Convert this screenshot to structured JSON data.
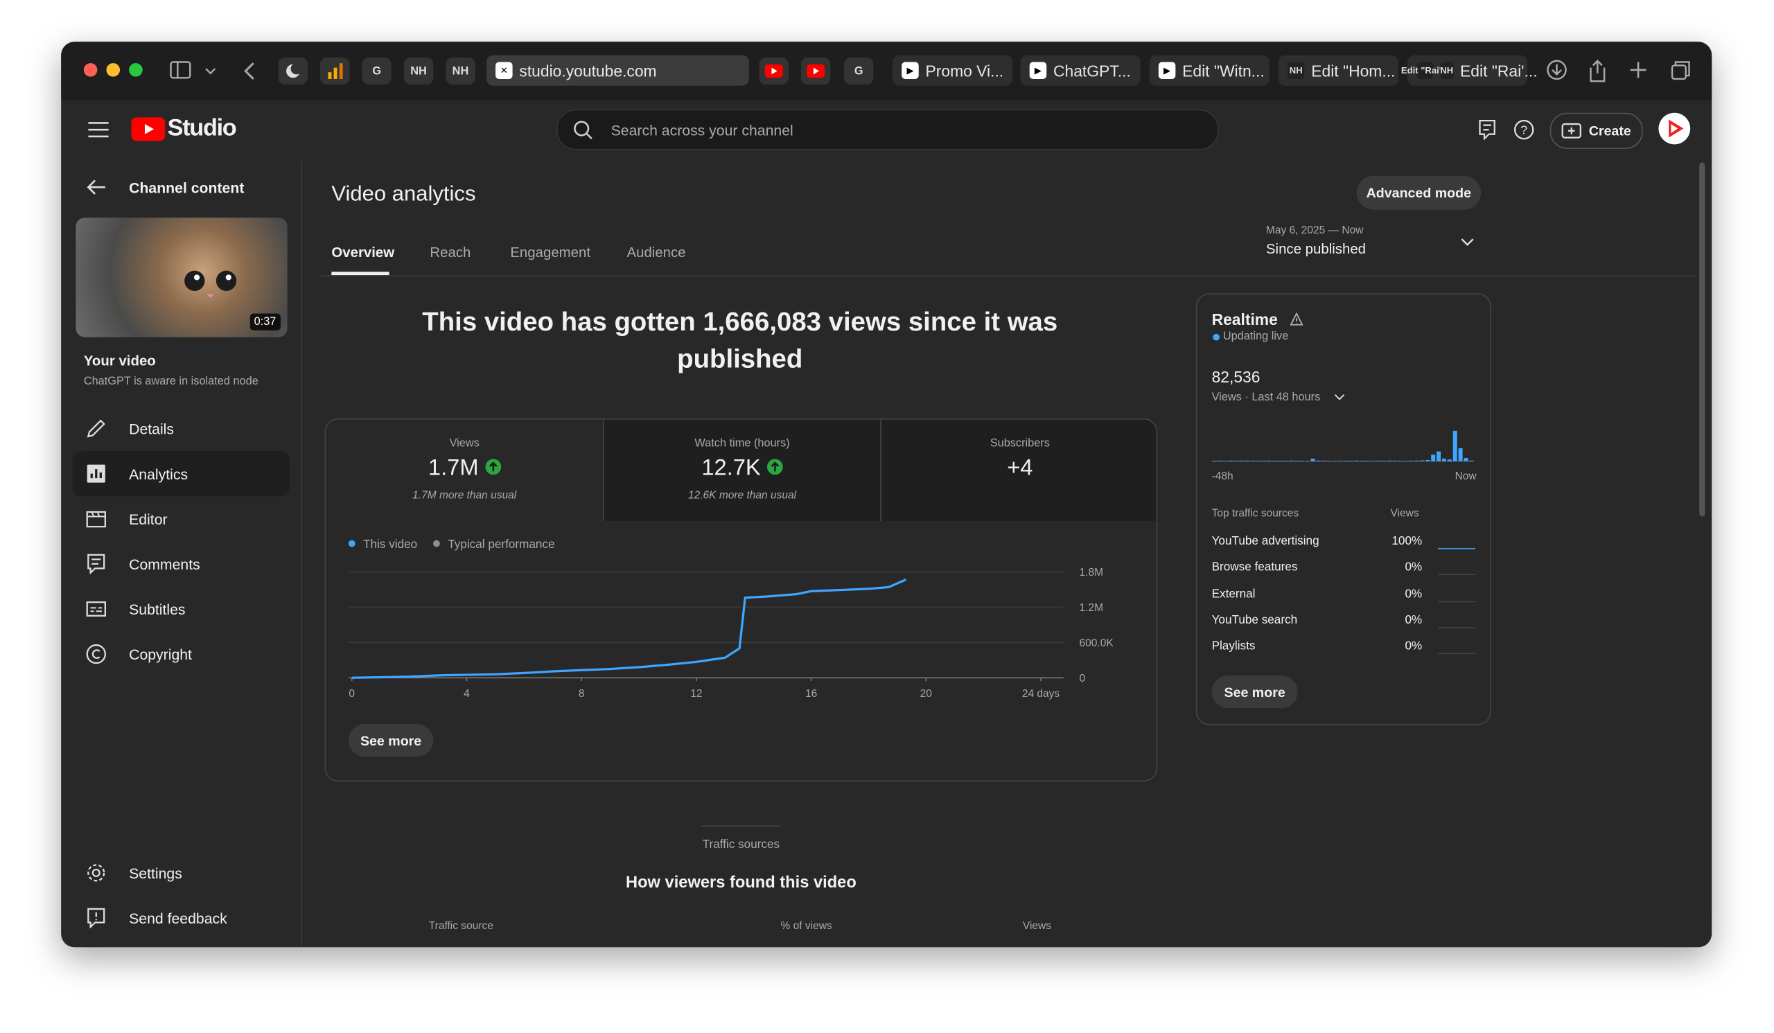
{
  "browser": {
    "pinned_left": [
      "G",
      "NH",
      "NH"
    ],
    "url": "studio.youtube.com",
    "pinned_right": [
      "G"
    ],
    "tabs": [
      {
        "title": "Promo Vi..."
      },
      {
        "title": "ChatGPT..."
      },
      {
        "title": "Edit \"Witn..."
      },
      {
        "icon": "NH",
        "title": "Edit \"Hom..."
      },
      {
        "icon": "NH",
        "title": "Edit \"Rai'..."
      }
    ]
  },
  "app": {
    "logo": "Studio",
    "search_placeholder": "Search across your channel",
    "create": "Create"
  },
  "sidebar": {
    "back": "Channel content",
    "duration": "0:37",
    "your_video": "Your video",
    "video_title": "ChatGPT is aware in isolated node",
    "nav": [
      "Details",
      "Analytics",
      "Editor",
      "Comments",
      "Subtitles",
      "Copyright"
    ],
    "bottom_nav": [
      "Settings",
      "Send feedback"
    ]
  },
  "main": {
    "title": "Video analytics",
    "advanced": "Advanced mode",
    "tabs": [
      "Overview",
      "Reach",
      "Engagement",
      "Audience"
    ],
    "date_range": "May 6, 2025 — Now",
    "period": "Since published",
    "headline": "This video has gotten 1,666,083 views since it was published",
    "metrics": [
      {
        "label": "Views",
        "value": "1.7M",
        "note": "1.7M more than usual"
      },
      {
        "label": "Watch time (hours)",
        "value": "12.7K",
        "note": "12.6K more than usual"
      },
      {
        "label": "Subscribers",
        "value": "+4"
      }
    ],
    "chart": {
      "type": "line",
      "legend": [
        {
          "name": "This video",
          "color": "#3ea6ff"
        },
        {
          "name": "Typical performance",
          "color": "#909090"
        }
      ],
      "x": [
        0,
        1,
        2,
        3,
        4,
        5,
        6,
        7,
        8,
        9,
        10,
        11,
        12,
        13,
        13.5,
        13.7,
        14.5,
        15.5,
        16,
        17,
        18,
        18.7,
        19.3
      ],
      "values": [
        0,
        10000,
        20000,
        40000,
        50000,
        60000,
        80000,
        110000,
        130000,
        150000,
        180000,
        220000,
        270000,
        340000,
        500000,
        1360000,
        1380000,
        1420000,
        1470000,
        1490000,
        1510000,
        1540000,
        1666083
      ],
      "xlim": [
        0,
        24
      ],
      "xticks": [
        0,
        4,
        8,
        12,
        16,
        20,
        {
          "value": 24,
          "label": "24 days"
        }
      ],
      "ylim": [
        0,
        1800000
      ],
      "yticks": [
        0,
        {
          "value": 600000,
          "label": "600.0K"
        },
        {
          "value": 1200000,
          "label": "1.2M"
        },
        {
          "value": 1800000,
          "label": "1.8M"
        }
      ],
      "grid": true,
      "see_more": "See more"
    }
  },
  "realtime": {
    "title": "Realtime",
    "status": "Updating live",
    "count": "82,536",
    "period": "Views · Last 48 hours",
    "chart": {
      "type": "bar",
      "color": "#3ea6ff",
      "values": [
        200,
        250,
        150,
        300,
        200,
        250,
        300,
        200,
        150,
        250,
        300,
        200,
        250,
        200,
        300,
        250,
        200,
        150,
        1200,
        300,
        250,
        200,
        150,
        200,
        250,
        200,
        300,
        250,
        200,
        150,
        250,
        200,
        300,
        250,
        200,
        150,
        250,
        300,
        400,
        600,
        3000,
        4500,
        1200,
        800,
        14000,
        6000,
        1500,
        300
      ]
    },
    "x_start": "-48h",
    "x_end": "Now",
    "sources_header": "Top traffic sources",
    "views_header": "Views",
    "sources": [
      {
        "name": "YouTube advertising",
        "share": "100%"
      },
      {
        "name": "Browse features",
        "share": "0%"
      },
      {
        "name": "External",
        "share": "0%"
      },
      {
        "name": "YouTube search",
        "share": "0%"
      },
      {
        "name": "Playlists",
        "share": "0%"
      }
    ],
    "see_more": "See more"
  },
  "traffic": {
    "eyebrow": "Traffic sources",
    "title": "How viewers found this video",
    "columns": [
      "Traffic source",
      "% of views",
      "Views"
    ]
  }
}
